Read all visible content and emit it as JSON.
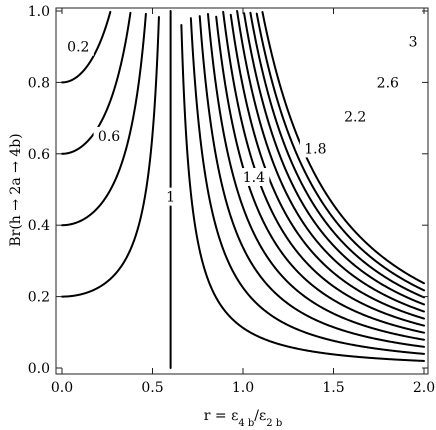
{
  "chart_data": {
    "type": "contour",
    "title": "",
    "xlabel_parts": [
      "r = ε",
      "4 b",
      "/ε",
      "2 b"
    ],
    "ylabel": "Br(h → 2a → 4b)",
    "xlim": [
      0,
      2
    ],
    "ylim": [
      0,
      1
    ],
    "x_ticks": [
      {
        "value": 0.0,
        "label": "0.0"
      },
      {
        "value": 0.5,
        "label": "0.5"
      },
      {
        "value": 1.0,
        "label": "1.0"
      },
      {
        "value": 1.5,
        "label": "1.5"
      },
      {
        "value": 2.0,
        "label": "2.0"
      }
    ],
    "y_ticks": [
      {
        "value": 0.0,
        "label": "0.0"
      },
      {
        "value": 0.2,
        "label": "0.2"
      },
      {
        "value": 0.4,
        "label": "0.4"
      },
      {
        "value": 0.6,
        "label": "0.6"
      },
      {
        "value": 0.8,
        "label": "0.8"
      },
      {
        "value": 1.0,
        "label": "1.0"
      }
    ],
    "contour_levels": [
      0.2,
      0.4,
      0.6,
      0.8,
      1,
      1.2,
      1.4,
      1.6,
      1.8,
      2.0,
      2.2,
      2.4,
      2.6,
      2.8,
      3.0,
      3.2,
      3.4
    ],
    "labeled_levels": [
      {
        "level": 0.2,
        "label": "0.2",
        "x": 0.09,
        "y": 0.9
      },
      {
        "level": 0.6,
        "label": "0.6",
        "x": 0.26,
        "y": 0.65
      },
      {
        "level": 1,
        "label": "1",
        "x": 0.6,
        "y": 0.48
      },
      {
        "level": 1.4,
        "label": "1.4",
        "x": 1.06,
        "y": 0.535
      },
      {
        "level": 1.8,
        "label": "1.8",
        "x": 1.4,
        "y": 0.615
      },
      {
        "level": 2.2,
        "label": "2.2",
        "x": 1.62,
        "y": 0.705
      },
      {
        "level": 2.6,
        "label": "2.6",
        "x": 1.8,
        "y": 0.8
      },
      {
        "level": 3,
        "label": "3",
        "x": 1.94,
        "y": 0.915
      }
    ],
    "grid": false,
    "legend": "none"
  }
}
